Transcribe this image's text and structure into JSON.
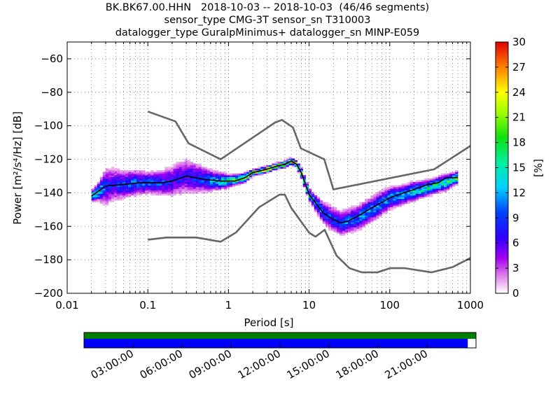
{
  "chart_data": {
    "type": "heatmap",
    "title_lines": [
      "BK.BK67.00.HHN   2018-10-03 -- 2018-10-03  (46/46 segments)",
      "sensor_type CMG-3T sensor_sn T310003",
      "datalogger_type GuralpMinimus+ datalogger_sn MINP-E059"
    ],
    "xlabel": "Period [s]",
    "ylabel": "Power [m²/s⁴/Hz] [dB]",
    "x_scale": "log",
    "xlim": [
      0.01,
      1000
    ],
    "ylim": [
      -200,
      -50
    ],
    "x_ticks": [
      0.01,
      0.1,
      1,
      10,
      100,
      1000
    ],
    "x_tick_labels": [
      "0.01",
      "0.1",
      "1",
      "10",
      "100",
      "1000"
    ],
    "y_ticks": [
      -60,
      -80,
      -100,
      -120,
      -140,
      -160,
      -180,
      -200
    ],
    "y_tick_labels": [
      "−60",
      "−80",
      "−100",
      "−120",
      "−140",
      "−160",
      "−180",
      "−200"
    ],
    "grid": "dotted",
    "colorbar": {
      "label": "[%]",
      "min": 0,
      "max": 30,
      "ticks": [
        0,
        3,
        6,
        9,
        12,
        15,
        18,
        21,
        24,
        27,
        30
      ],
      "colormap": "pqlx"
    },
    "series": [
      {
        "role": "high noise model",
        "color": "#666666",
        "x": [
          0.1,
          0.22,
          0.32,
          0.8,
          3.8,
          4.6,
          6.3,
          7.9,
          15.4,
          20,
          354.8,
          1000
        ],
        "y": [
          -91.5,
          -97.4,
          -110.5,
          -120,
          -98,
          -96.5,
          -101,
          -113.5,
          -120,
          -138,
          -126,
          -112
        ]
      },
      {
        "role": "low noise model",
        "color": "#666666",
        "x": [
          0.1,
          0.17,
          0.4,
          0.8,
          1.24,
          2.4,
          4.3,
          5,
          6,
          10,
          12,
          15.6,
          21.9,
          31.6,
          45,
          70,
          101,
          154,
          328,
          600,
          1000
        ],
        "y": [
          -168,
          -166.7,
          -166.7,
          -169.2,
          -163.7,
          -148.6,
          -141.1,
          -141.1,
          -149,
          -163.8,
          -166.2,
          -162.1,
          -177.5,
          -185,
          -187.5,
          -187.5,
          -185,
          -185,
          -187.5,
          -184.4,
          -178.9
        ]
      },
      {
        "role": "mean PSD",
        "color": "#000000",
        "x": [
          0.02,
          0.03,
          0.05,
          0.08,
          0.1,
          0.15,
          0.2,
          0.3,
          0.5,
          0.8,
          1.2,
          1.6,
          2,
          3,
          4,
          5,
          6,
          7,
          8,
          10,
          12,
          15,
          20,
          25,
          30,
          40,
          60,
          100,
          150,
          200,
          300,
          400,
          500,
          700
        ],
        "y": [
          -142,
          -136,
          -135,
          -134,
          -134,
          -134,
          -133,
          -130,
          -132,
          -133,
          -133,
          -131,
          -128,
          -126,
          -124,
          -123,
          -121,
          -123,
          -128,
          -141,
          -146,
          -152,
          -156,
          -158,
          -157,
          -154,
          -149,
          -143,
          -140,
          -138,
          -135,
          -134,
          -131,
          -131
        ]
      }
    ],
    "density": {
      "x": [
        0.02,
        0.025,
        0.03,
        0.04,
        0.05,
        0.07,
        0.1,
        0.15,
        0.2,
        0.25,
        0.3,
        0.4,
        0.5,
        0.7,
        1,
        1.3,
        1.6,
        2,
        2.5,
        3,
        4,
        5,
        6,
        7,
        8,
        10,
        12,
        15,
        20,
        25,
        30,
        40,
        50,
        70,
        100,
        150,
        200,
        300,
        400,
        500,
        600,
        700
      ],
      "center_db": [
        -142,
        -139,
        -136,
        -135,
        -135,
        -134,
        -134,
        -134,
        -133,
        -131,
        -130,
        -131,
        -132,
        -133,
        -133,
        -132,
        -131,
        -128,
        -127,
        -126,
        -124,
        -123,
        -121,
        -123,
        -128,
        -141,
        -146,
        -152,
        -156,
        -158,
        -157,
        -155,
        -152,
        -148,
        -143,
        -141,
        -139,
        -137,
        -135,
        -134,
        -132,
        -131
      ],
      "spread_db": [
        3,
        6,
        12,
        10,
        9,
        8,
        7,
        8,
        10,
        11,
        11,
        10,
        8,
        6,
        4,
        3,
        3,
        2,
        2,
        2,
        2,
        2,
        2,
        2,
        3,
        4,
        5,
        7,
        8,
        8,
        8,
        8,
        8,
        8,
        7,
        6,
        6,
        5,
        5,
        5,
        4,
        4
      ],
      "peak_percent": [
        18,
        14,
        8,
        8,
        9,
        10,
        10,
        9,
        7,
        7,
        7,
        8,
        9,
        12,
        17,
        19,
        20,
        24,
        24,
        25,
        24,
        25,
        26,
        24,
        20,
        15,
        12,
        10,
        9,
        9,
        10,
        10,
        11,
        11,
        12,
        13,
        14,
        15,
        15,
        16,
        17,
        18
      ]
    },
    "time_axis": {
      "tick_labels": [
        "03:00:00",
        "06:00:00",
        "09:00:00",
        "12:00:00",
        "15:00:00",
        "18:00:00",
        "21:00:00"
      ],
      "coverage_top": {
        "color": "#007f00",
        "start": 0.0,
        "end": 1.0
      },
      "coverage_bottom": {
        "color": "#0000ff",
        "start": 0.0,
        "end": 0.979
      }
    }
  }
}
